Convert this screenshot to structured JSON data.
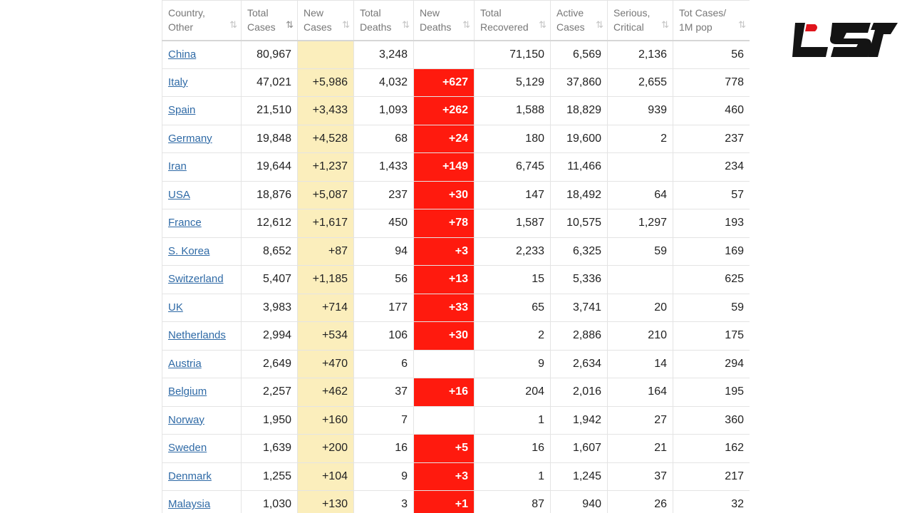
{
  "table": {
    "headers": [
      {
        "label": "Country,\nOther",
        "sort": "⇅"
      },
      {
        "label": "Total\nCases",
        "sort": "⇅"
      },
      {
        "label": "New\nCases",
        "sort": "⇅"
      },
      {
        "label": "Total\nDeaths",
        "sort": "⇅"
      },
      {
        "label": "New\nDeaths",
        "sort": "⇅"
      },
      {
        "label": "Total\nRecovered",
        "sort": "⇅"
      },
      {
        "label": "Active\nCases",
        "sort": "⇅"
      },
      {
        "label": "Serious,\nCritical",
        "sort": "⇅"
      },
      {
        "label": "Tot Cases/\n1M pop",
        "sort": "⇅"
      }
    ],
    "rows": [
      {
        "country": "China",
        "total_cases": "80,967",
        "new_cases": "",
        "total_deaths": "3,248",
        "new_deaths": "",
        "total_recovered": "71,150",
        "active_cases": "6,569",
        "serious": "2,136",
        "per_million": "56"
      },
      {
        "country": "Italy",
        "total_cases": "47,021",
        "new_cases": "+5,986",
        "total_deaths": "4,032",
        "new_deaths": "+627",
        "total_recovered": "5,129",
        "active_cases": "37,860",
        "serious": "2,655",
        "per_million": "778"
      },
      {
        "country": "Spain",
        "total_cases": "21,510",
        "new_cases": "+3,433",
        "total_deaths": "1,093",
        "new_deaths": "+262",
        "total_recovered": "1,588",
        "active_cases": "18,829",
        "serious": "939",
        "per_million": "460"
      },
      {
        "country": "Germany",
        "total_cases": "19,848",
        "new_cases": "+4,528",
        "total_deaths": "68",
        "new_deaths": "+24",
        "total_recovered": "180",
        "active_cases": "19,600",
        "serious": "2",
        "per_million": "237"
      },
      {
        "country": "Iran",
        "total_cases": "19,644",
        "new_cases": "+1,237",
        "total_deaths": "1,433",
        "new_deaths": "+149",
        "total_recovered": "6,745",
        "active_cases": "11,466",
        "serious": "",
        "per_million": "234"
      },
      {
        "country": "USA",
        "total_cases": "18,876",
        "new_cases": "+5,087",
        "total_deaths": "237",
        "new_deaths": "+30",
        "total_recovered": "147",
        "active_cases": "18,492",
        "serious": "64",
        "per_million": "57"
      },
      {
        "country": "France",
        "total_cases": "12,612",
        "new_cases": "+1,617",
        "total_deaths": "450",
        "new_deaths": "+78",
        "total_recovered": "1,587",
        "active_cases": "10,575",
        "serious": "1,297",
        "per_million": "193"
      },
      {
        "country": "S. Korea",
        "total_cases": "8,652",
        "new_cases": "+87",
        "total_deaths": "94",
        "new_deaths": "+3",
        "total_recovered": "2,233",
        "active_cases": "6,325",
        "serious": "59",
        "per_million": "169"
      },
      {
        "country": "Switzerland",
        "total_cases": "5,407",
        "new_cases": "+1,185",
        "total_deaths": "56",
        "new_deaths": "+13",
        "total_recovered": "15",
        "active_cases": "5,336",
        "serious": "",
        "per_million": "625"
      },
      {
        "country": "UK",
        "total_cases": "3,983",
        "new_cases": "+714",
        "total_deaths": "177",
        "new_deaths": "+33",
        "total_recovered": "65",
        "active_cases": "3,741",
        "serious": "20",
        "per_million": "59"
      },
      {
        "country": "Netherlands",
        "total_cases": "2,994",
        "new_cases": "+534",
        "total_deaths": "106",
        "new_deaths": "+30",
        "total_recovered": "2",
        "active_cases": "2,886",
        "serious": "210",
        "per_million": "175"
      },
      {
        "country": "Austria",
        "total_cases": "2,649",
        "new_cases": "+470",
        "total_deaths": "6",
        "new_deaths": "",
        "total_recovered": "9",
        "active_cases": "2,634",
        "serious": "14",
        "per_million": "294"
      },
      {
        "country": "Belgium",
        "total_cases": "2,257",
        "new_cases": "+462",
        "total_deaths": "37",
        "new_deaths": "+16",
        "total_recovered": "204",
        "active_cases": "2,016",
        "serious": "164",
        "per_million": "195"
      },
      {
        "country": "Norway",
        "total_cases": "1,950",
        "new_cases": "+160",
        "total_deaths": "7",
        "new_deaths": "",
        "total_recovered": "1",
        "active_cases": "1,942",
        "serious": "27",
        "per_million": "360"
      },
      {
        "country": "Sweden",
        "total_cases": "1,639",
        "new_cases": "+200",
        "total_deaths": "16",
        "new_deaths": "+5",
        "total_recovered": "16",
        "active_cases": "1,607",
        "serious": "21",
        "per_million": "162"
      },
      {
        "country": "Denmark",
        "total_cases": "1,255",
        "new_cases": "+104",
        "total_deaths": "9",
        "new_deaths": "+3",
        "total_recovered": "1",
        "active_cases": "1,245",
        "serious": "37",
        "per_million": "217"
      },
      {
        "country": "Malaysia",
        "total_cases": "1,030",
        "new_cases": "+130",
        "total_deaths": "3",
        "new_deaths": "+1",
        "total_recovered": "87",
        "active_cases": "940",
        "serious": "26",
        "per_million": "32"
      }
    ]
  },
  "colors": {
    "new_cases_bg": "#fbeebc",
    "new_deaths_bg": "#ff1a0e",
    "link": "#2f6aa6",
    "logo_red": "#e0141c",
    "logo_black": "#141414"
  },
  "icons": {
    "sort": "sort-arrows-icon",
    "logo": "site-logo"
  }
}
